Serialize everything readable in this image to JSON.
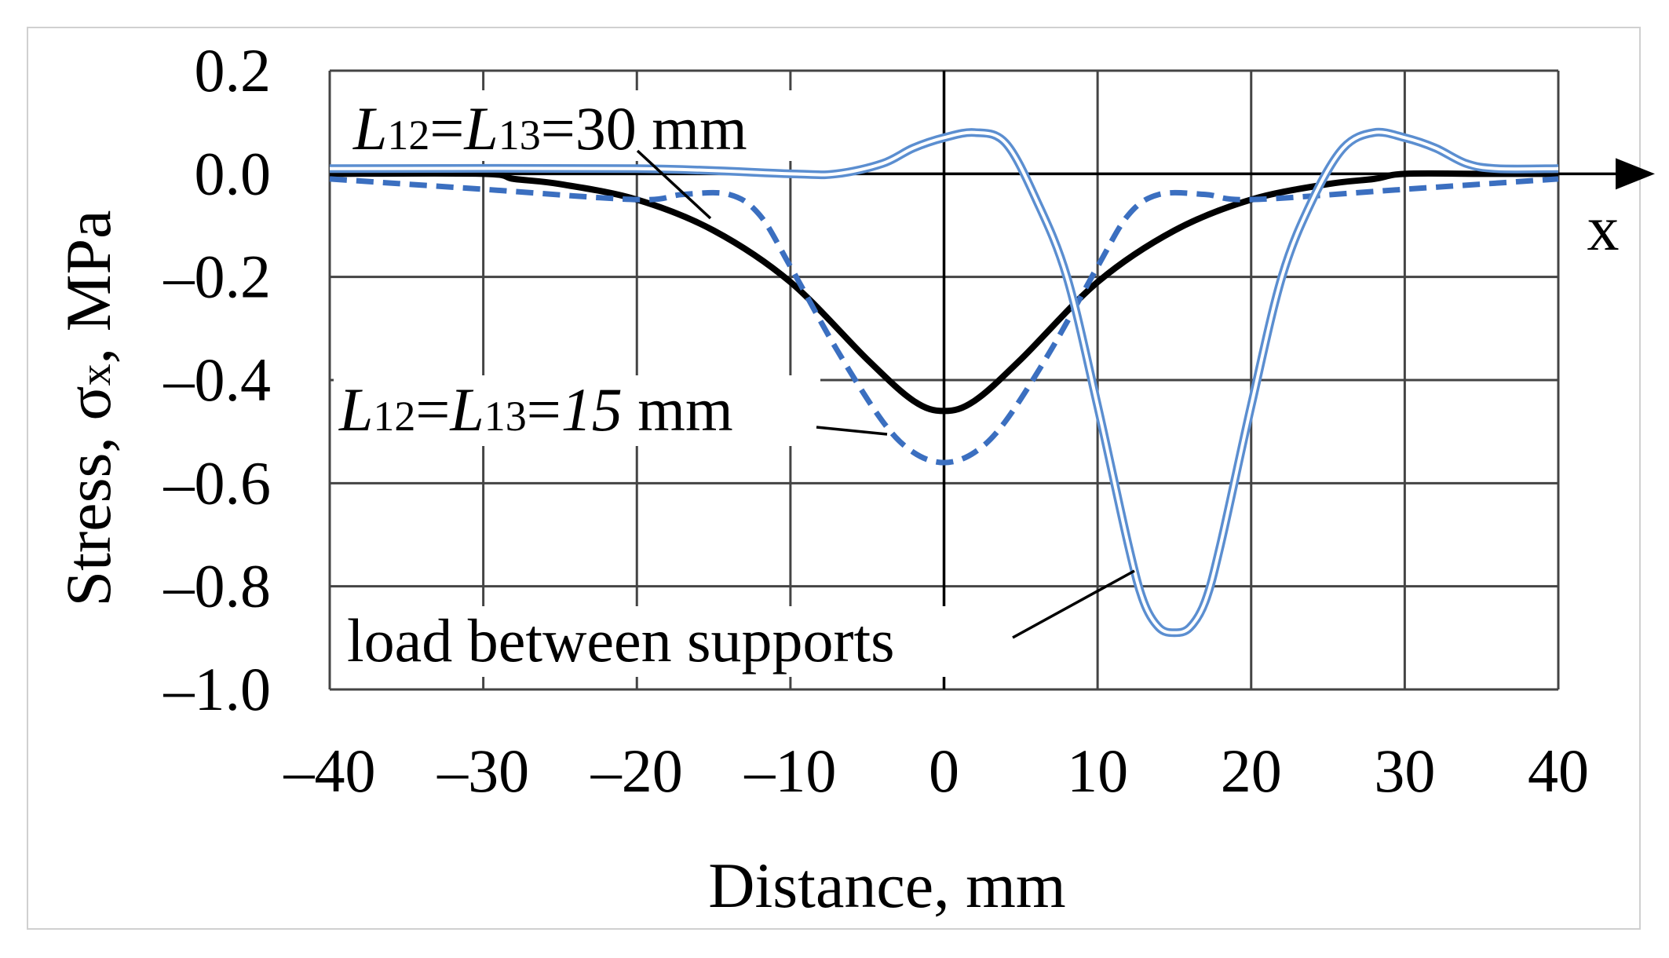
{
  "chart_data": {
    "type": "line",
    "xlabel": "Distance, mm",
    "ylabel_main": "Stress, σ",
    "ylabel_sub": "x",
    "ylabel_tail": ", MPa",
    "axis_arrow_label": "x",
    "xlim": [
      -40,
      40
    ],
    "ylim": [
      -1.0,
      0.2
    ],
    "xticks": [
      -40,
      -30,
      -20,
      -10,
      0,
      10,
      20,
      30,
      40
    ],
    "xtick_labels": [
      "–40",
      "–30",
      "–20",
      "–10",
      "0",
      "10",
      "20",
      "30",
      "40"
    ],
    "yticks": [
      0.2,
      0.0,
      -0.2,
      -0.4,
      -0.6,
      -0.8,
      -1.0
    ],
    "ytick_labels": [
      "0.2",
      "0.0",
      "–0.2",
      "–0.4",
      "–0.6",
      "–0.8",
      "–1.0"
    ],
    "grid": true,
    "series": [
      {
        "color": "#000000",
        "style": "solid-thick",
        "x": [
          -40,
          -30,
          -28,
          -25,
          -20,
          -15,
          -10,
          -5,
          -2,
          0,
          2,
          5,
          10,
          15,
          20,
          25,
          28,
          30,
          35,
          40
        ],
        "y": [
          0.0,
          0.0,
          -0.01,
          -0.02,
          -0.05,
          -0.11,
          -0.21,
          -0.36,
          -0.44,
          -0.46,
          -0.44,
          -0.36,
          -0.21,
          -0.11,
          -0.05,
          -0.02,
          -0.01,
          0.0,
          0.0,
          0.0
        ]
      },
      {
        "color": "#3b6fc0",
        "style": "dashed",
        "x": [
          -40,
          -30,
          -20,
          -17,
          -14,
          -12,
          -10,
          -7,
          -4,
          -2,
          0,
          2,
          4,
          7,
          10,
          12,
          14,
          17,
          20,
          30,
          40
        ],
        "y": [
          -0.01,
          -0.03,
          -0.05,
          -0.04,
          -0.04,
          -0.08,
          -0.18,
          -0.34,
          -0.48,
          -0.54,
          -0.56,
          -0.54,
          -0.48,
          -0.34,
          -0.18,
          -0.08,
          -0.04,
          -0.04,
          -0.05,
          -0.03,
          -0.01
        ]
      },
      {
        "color": "#5b8ed0",
        "style": "double",
        "x": [
          -40,
          -20,
          -10,
          -7,
          -4,
          -2,
          0,
          2,
          4,
          6,
          8,
          10,
          12,
          13,
          14,
          15,
          16,
          17,
          18,
          20,
          22,
          24,
          26,
          28,
          30,
          32,
          34,
          36,
          40
        ],
        "y": [
          0.01,
          0.01,
          0.0,
          0.0,
          0.02,
          0.05,
          0.07,
          0.08,
          0.06,
          -0.05,
          -0.2,
          -0.45,
          -0.72,
          -0.83,
          -0.88,
          -0.89,
          -0.88,
          -0.83,
          -0.72,
          -0.45,
          -0.2,
          -0.05,
          0.05,
          0.08,
          0.07,
          0.05,
          0.02,
          0.01,
          0.01
        ]
      }
    ],
    "annotations": [
      {
        "parts": [
          [
            "L",
            "italic"
          ],
          [
            "12",
            "sub"
          ],
          [
            "=",
            "normal"
          ],
          [
            "L",
            "italic"
          ],
          [
            "13",
            "sub"
          ],
          [
            "=30 mm",
            "normal"
          ]
        ]
      },
      {
        "parts": [
          [
            "L",
            "italic"
          ],
          [
            "12",
            "sub"
          ],
          [
            "=",
            "normal"
          ],
          [
            "L",
            "italic"
          ],
          [
            "13",
            "sub"
          ],
          [
            "=",
            "normal"
          ],
          [
            "15",
            "italic"
          ],
          [
            " mm",
            "normal"
          ]
        ]
      },
      {
        "parts": [
          [
            "load between supports",
            "normal"
          ]
        ]
      }
    ]
  }
}
